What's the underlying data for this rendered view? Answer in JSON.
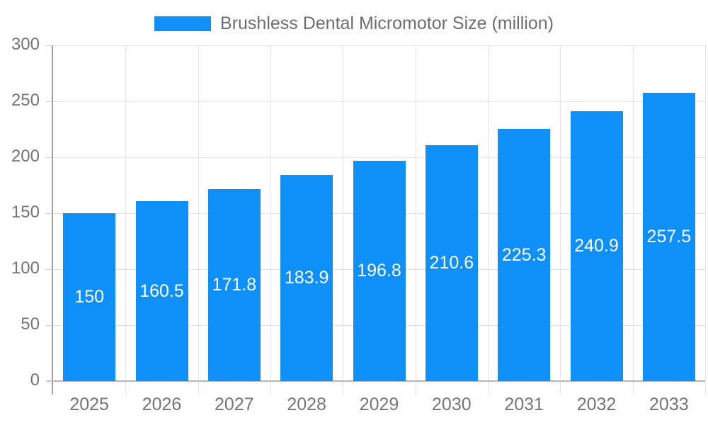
{
  "chart_data": {
    "type": "bar",
    "title": "Brushless Dental Micromotor Size (million)",
    "categories": [
      "2025",
      "2026",
      "2027",
      "2028",
      "2029",
      "2030",
      "2031",
      "2032",
      "2033"
    ],
    "values": [
      150,
      160.5,
      171.8,
      183.9,
      196.8,
      210.6,
      225.3,
      240.9,
      257.5
    ],
    "value_labels": [
      "150",
      "160.5",
      "171.8",
      "183.9",
      "196.8",
      "210.6",
      "225.3",
      "240.9",
      "257.5"
    ],
    "xlabel": "",
    "ylabel": "",
    "ylim": [
      0,
      300
    ],
    "y_ticks": [
      0,
      50,
      100,
      150,
      200,
      250,
      300
    ],
    "grid": true,
    "legend_position": "top",
    "colors": {
      "bar": "#0f90f8",
      "bar_value_label": "#ffffff",
      "axis_text": "#757575",
      "title_text": "#6e6e6e",
      "gridline": "#e3e3e3",
      "y_axis_line": "#a0a0a0",
      "x_axis_line": "#b5b5b5",
      "tick": "#cfcfcf",
      "background": "#ffffff"
    }
  }
}
